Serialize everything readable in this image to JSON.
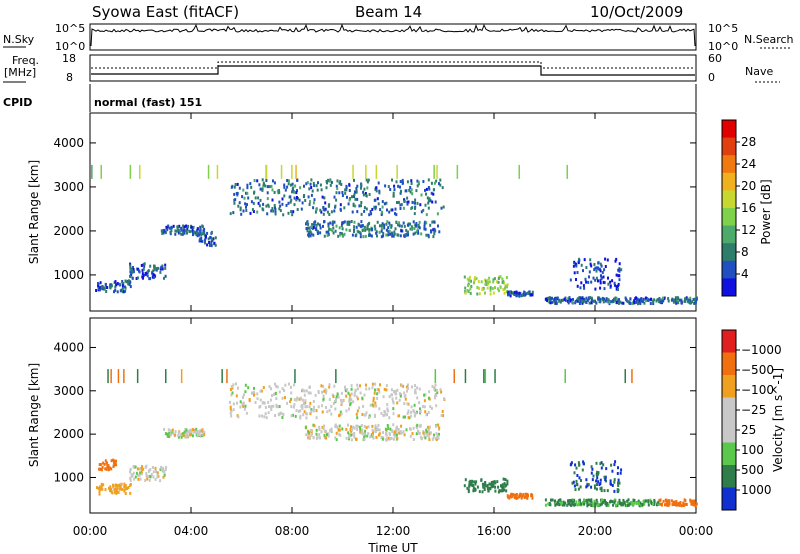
{
  "header": {
    "station": "Syowa East (fitACF)",
    "beam": "Beam 14",
    "date": "10/Oct/2009"
  },
  "panels": {
    "nsky": {
      "label": "N.Sky",
      "ticks": [
        "10^5",
        "10^0"
      ],
      "right_ticks": [
        "10^5",
        "10^0"
      ],
      "right_label": "N.Search"
    },
    "freq": {
      "label_line1": "Freq.",
      "label_line2": "[MHz]",
      "ticks": [
        "18",
        "8"
      ],
      "right_ticks": [
        "60",
        "0"
      ],
      "right_label": "Nave"
    },
    "cpid": {
      "label": "CPID",
      "value": "normal (fast) 151"
    }
  },
  "x_axis": {
    "label": "Time UT",
    "ticks": [
      "00:00",
      "04:00",
      "08:00",
      "12:00",
      "16:00",
      "20:00",
      "00:00"
    ]
  },
  "chart_data": [
    {
      "type": "heatmap",
      "name": "power",
      "ylabel": "Slant Range [km]",
      "yticks": [
        "1000",
        "2000",
        "3000",
        "4000"
      ],
      "ylim": [
        180,
        4680
      ],
      "xlim": [
        0,
        24
      ],
      "colorbar_label": "Power [dB]",
      "colorbar_ticks": [
        "4",
        "8",
        "12",
        "16",
        "20",
        "24",
        "28"
      ],
      "colorbar_colors": [
        "#1010e0",
        "#2050c0",
        "#2e7d6a",
        "#4daa6a",
        "#7fd04a",
        "#c8d830",
        "#f0b020",
        "#f07a10",
        "#e04010",
        "#e00000"
      ],
      "regions": [
        {
          "t": [
            0.2,
            1.6
          ],
          "r": [
            650,
            900
          ],
          "level": 0.18
        },
        {
          "t": [
            1.5,
            3.0
          ],
          "r": [
            950,
            1300
          ],
          "level": 0.15
        },
        {
          "t": [
            2.8,
            4.5
          ],
          "r": [
            1950,
            2150
          ],
          "level": 0.17
        },
        {
          "t": [
            4.2,
            5.0
          ],
          "r": [
            1700,
            2000
          ],
          "level": 0.15
        },
        {
          "t": [
            5.5,
            14.0
          ],
          "r": [
            2400,
            3200
          ],
          "level": 0.2
        },
        {
          "t": [
            8.5,
            13.8
          ],
          "r": [
            1900,
            2250
          ],
          "level": 0.22
        },
        {
          "t": [
            14.8,
            16.5
          ],
          "r": [
            600,
            1000
          ],
          "level": 0.45
        },
        {
          "t": [
            16.5,
            17.5
          ],
          "r": [
            550,
            650
          ],
          "level": 0.15
        },
        {
          "t": [
            19.0,
            21.0
          ],
          "r": [
            700,
            1400
          ],
          "level": 0.12
        },
        {
          "t": [
            18.0,
            24.0
          ],
          "r": [
            380,
            520
          ],
          "level": 0.18
        }
      ]
    },
    {
      "type": "heatmap",
      "name": "velocity",
      "ylabel": "Slant Range [km]",
      "yticks": [
        "1000",
        "2000",
        "3000",
        "4000"
      ],
      "ylim": [
        180,
        4680
      ],
      "xlim": [
        0,
        24
      ],
      "colorbar_label": "Velocity [m s^-1]",
      "colorbar_ticks": [
        "1000",
        "500",
        "100",
        "25",
        "−25",
        "−100",
        "−500",
        "−1000"
      ],
      "colorbar_colors": [
        "#1030d0",
        "#2e7d4a",
        "#5ac84a",
        "#c8c8c8",
        "#c8c8c8",
        "#f0a020",
        "#f07010",
        "#e02020"
      ],
      "regions": [
        {
          "t": [
            0.2,
            1.6
          ],
          "r": [
            650,
            900
          ],
          "vel": -60
        },
        {
          "t": [
            0.3,
            1.0
          ],
          "r": [
            1200,
            1450
          ],
          "vel": -200
        },
        {
          "t": [
            1.5,
            3.0
          ],
          "r": [
            950,
            1300
          ],
          "vel": 0
        },
        {
          "t": [
            2.8,
            4.5
          ],
          "r": [
            1950,
            2150
          ],
          "vel": 0
        },
        {
          "t": [
            5.5,
            14.0
          ],
          "r": [
            2400,
            3200
          ],
          "vel": 0
        },
        {
          "t": [
            8.5,
            13.8
          ],
          "r": [
            1900,
            2250
          ],
          "vel": 0
        },
        {
          "t": [
            14.8,
            16.5
          ],
          "r": [
            700,
            1000
          ],
          "vel": 150
        },
        {
          "t": [
            16.5,
            17.5
          ],
          "r": [
            550,
            650
          ],
          "vel": -200
        },
        {
          "t": [
            19.0,
            21.0
          ],
          "r": [
            700,
            1400
          ],
          "vel": 500
        },
        {
          "t": [
            18.0,
            22.5
          ],
          "r": [
            380,
            520
          ],
          "vel": 120
        },
        {
          "t": [
            22.5,
            24.0
          ],
          "r": [
            380,
            520
          ],
          "vel": -150
        }
      ]
    }
  ]
}
